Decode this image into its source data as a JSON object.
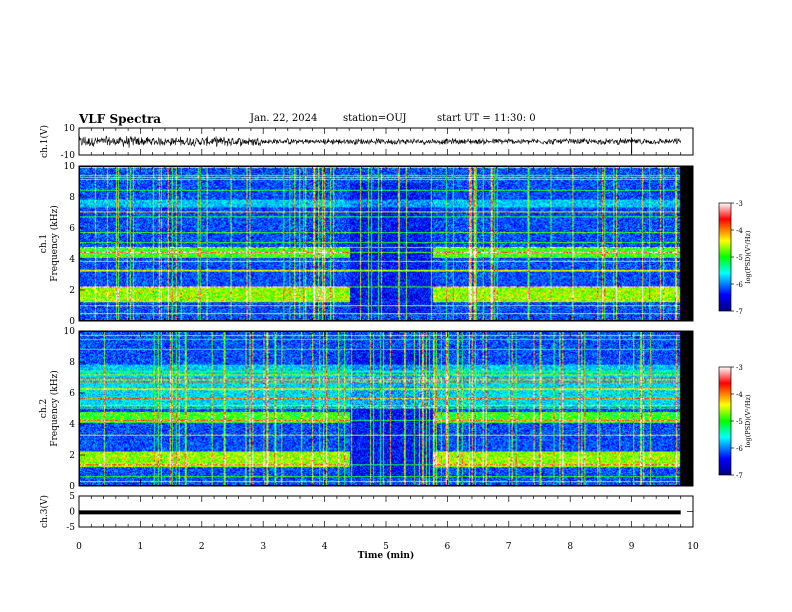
{
  "header": {
    "title": "VLF Spectra",
    "date": "Jan. 22, 2024",
    "station": "station=OUJ",
    "start_time": "start UT =  11:30: 0"
  },
  "chart_data": [
    {
      "type": "line",
      "name": "ch1-waveform",
      "ylabel": "ch.1(V)",
      "ylim": [
        -10,
        10
      ],
      "yticks": [
        "10",
        "-10"
      ],
      "xlim": [
        0,
        10
      ]
    },
    {
      "type": "heatmap",
      "name": "ch1-spectrogram",
      "ylabel": "Frequency (kHz)",
      "ylabel2": "ch.1",
      "ylim": [
        0,
        10
      ],
      "yticks": [
        "0",
        "2",
        "4",
        "6",
        "8",
        "10"
      ],
      "xlim": [
        0,
        10
      ],
      "colorbar": {
        "label": "log(PSD)(V²/Hz)",
        "ticks": [
          "-3",
          "-4",
          "-5",
          "-6",
          "-7"
        ],
        "range": [
          -7,
          -3
        ]
      }
    },
    {
      "type": "heatmap",
      "name": "ch2-spectrogram",
      "ylabel": "Frequency (kHz)",
      "ylabel2": "ch.2",
      "ylim": [
        0,
        10
      ],
      "yticks": [
        "0",
        "2",
        "4",
        "6",
        "8",
        "10"
      ],
      "xlim": [
        0,
        10
      ],
      "colorbar": {
        "label": "log(PSD)(V²/Hz)",
        "ticks": [
          "-3",
          "-4",
          "-5",
          "-6",
          "-7"
        ],
        "range": [
          -7,
          -3
        ]
      }
    },
    {
      "type": "line",
      "name": "ch3-waveform",
      "ylabel": "ch.3(V)",
      "ylim": [
        -5,
        5
      ],
      "yticks": [
        "5",
        "0",
        "-5"
      ],
      "xlim": [
        0,
        10
      ],
      "values": [
        -0.3,
        -0.3
      ]
    }
  ],
  "xaxis": {
    "label": "Time (min)",
    "ticks": [
      "0",
      "1",
      "2",
      "3",
      "4",
      "5",
      "6",
      "7",
      "8",
      "9",
      "10"
    ]
  }
}
